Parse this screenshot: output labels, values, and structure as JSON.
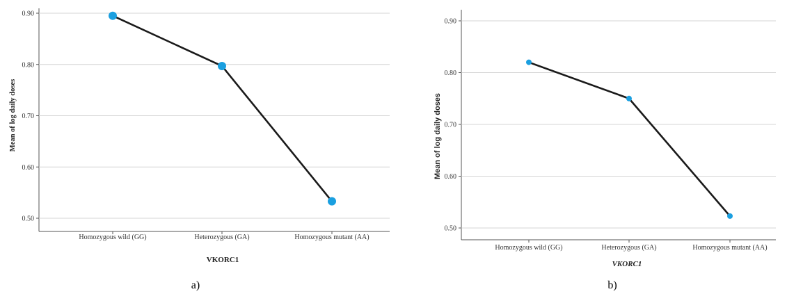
{
  "chart_data": [
    {
      "type": "line",
      "panel_label": "a)",
      "categories": [
        "Homozygous wild (GG)",
        "Heterozygous (GA)",
        "Homozygous mutant (AA)"
      ],
      "values": [
        0.895,
        0.797,
        0.533
      ],
      "xlabel": "VKORC1",
      "ylabel": "Mean of log daily doses",
      "yticks": [
        "0.50",
        "0.60",
        "0.70",
        "0.80",
        "0.90"
      ],
      "ylim": [
        0.49,
        0.91
      ],
      "grid": true,
      "line_color": "#1a1a1a",
      "marker_color": "#1a9fe0"
    },
    {
      "type": "line",
      "panel_label": "b)",
      "categories": [
        "Homozygous wild (GG)",
        "Heterozygous (GA)",
        "Homozygous mutant (AA)"
      ],
      "values": [
        0.82,
        0.75,
        0.523
      ],
      "xlabel": "VKORC1",
      "ylabel": "Mean of log daily doses",
      "yticks": [
        "0.50",
        "0.60",
        "0.70",
        "0.80",
        "0.90"
      ],
      "ylim": [
        0.49,
        0.92
      ],
      "grid": true,
      "line_color": "#1a1a1a",
      "marker_color": "#1a9fe0"
    }
  ]
}
